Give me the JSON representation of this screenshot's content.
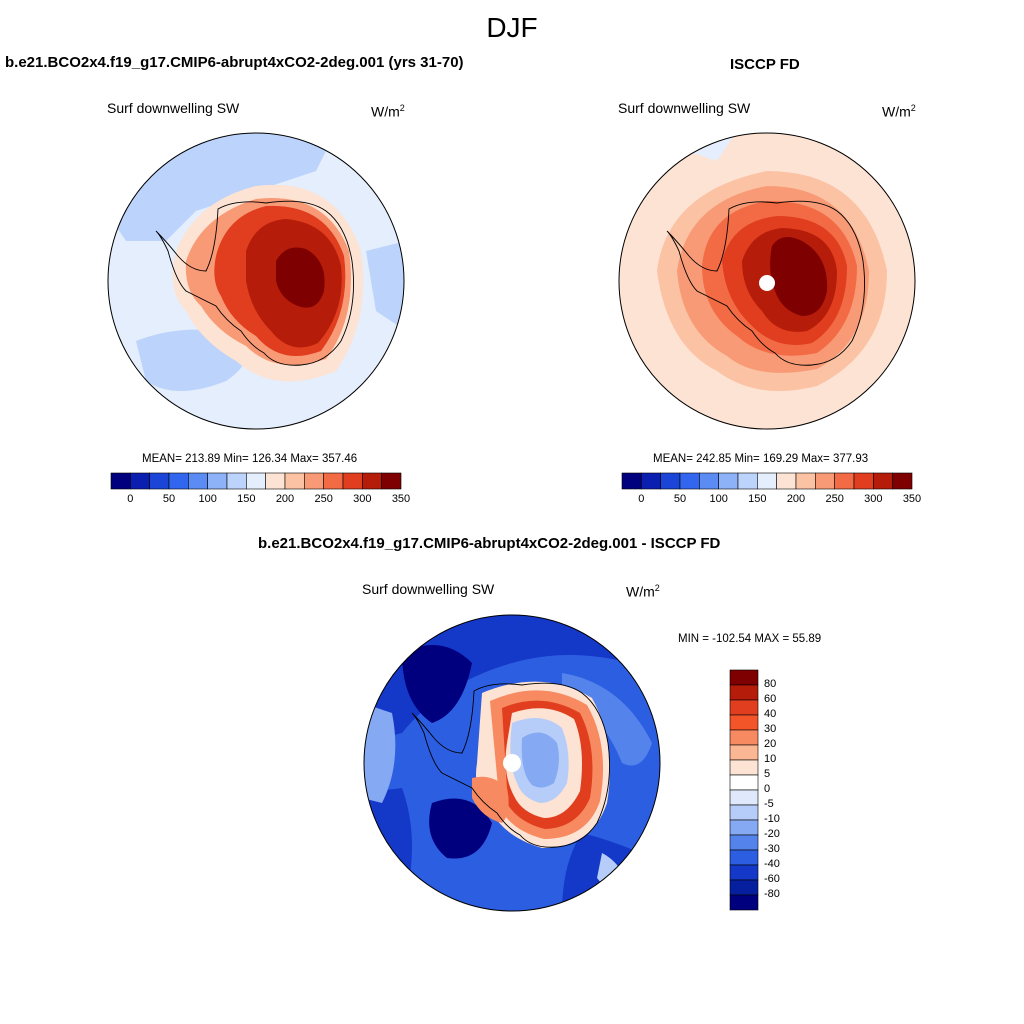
{
  "figure": {
    "title": "DJF"
  },
  "panels": [
    {
      "title": "b.e21.BCO2x4.f19_g17.CMIP6-abrupt4xCO2-2deg.001 (yrs 31-70)",
      "variable": "Surf downwelling SW",
      "units_base": "W/m",
      "units_exp": "2",
      "stats": "MEAN= 213.89  Min= 126.34  Max= 357.46",
      "colorbar_ticks": [
        "0",
        "50",
        "100",
        "150",
        "200",
        "250",
        "300",
        "350"
      ]
    },
    {
      "title": "ISCCP FD",
      "variable": "Surf downwelling SW",
      "units_base": "W/m",
      "units_exp": "2",
      "stats": "MEAN= 242.85  Min= 169.29  Max= 377.93",
      "colorbar_ticks": [
        "0",
        "50",
        "100",
        "150",
        "200",
        "250",
        "300",
        "350"
      ]
    },
    {
      "title": "b.e21.BCO2x4.f19_g17.CMIP6-abrupt4xCO2-2deg.001 - ISCCP FD",
      "variable": "Surf downwelling SW",
      "units_base": "W/m",
      "units_exp": "2",
      "stats": "MIN = -102.54 MAX =  55.89",
      "colorbar_ticks": [
        "80",
        "60",
        "40",
        "30",
        "20",
        "10",
        "5",
        "0",
        "-5",
        "-10",
        "-20",
        "-30",
        "-40",
        "-60",
        "-80"
      ]
    }
  ],
  "colors": {
    "abs_scale": [
      "#00007f",
      "#0a1fb0",
      "#1a45d6",
      "#3366ee",
      "#5a8cf4",
      "#8db2f8",
      "#bcd3fb",
      "#e4eefc",
      "#fde3d3",
      "#fbc2a4",
      "#f89a76",
      "#f26b45",
      "#e03e1e",
      "#b51c0a",
      "#7f0000"
    ],
    "diff_scale": [
      "#7f0000",
      "#b51c0a",
      "#e03e1e",
      "#f45528",
      "#f78a60",
      "#fbb794",
      "#fde3d3",
      "#ffffff",
      "#dfe9fb",
      "#b6cdf9",
      "#86a9f3",
      "#5583ec",
      "#2c5ee2",
      "#1438c8",
      "#061f9e",
      "#00007f"
    ]
  }
}
